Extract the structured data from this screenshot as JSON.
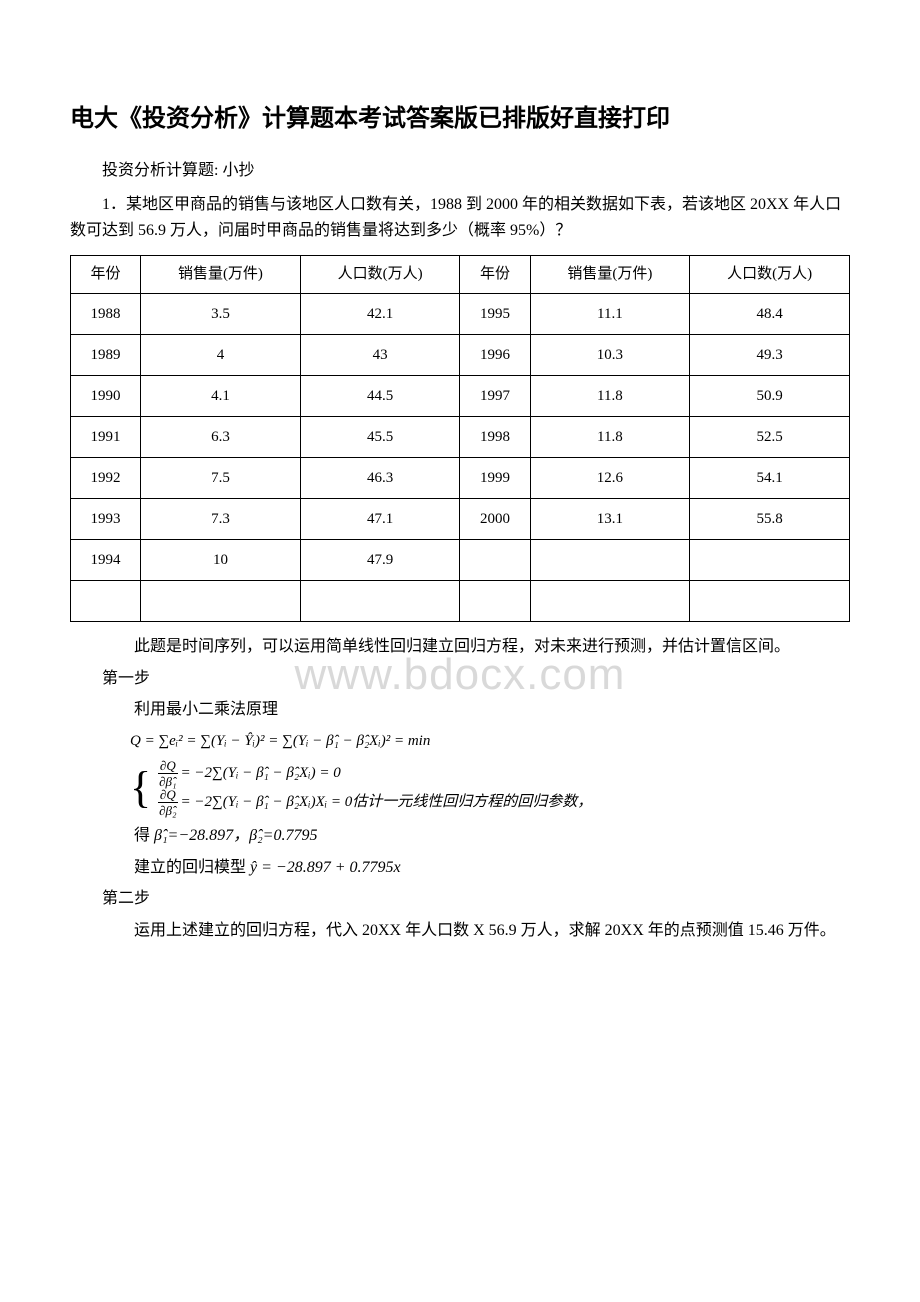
{
  "title": "电大《投资分析》计算题本考试答案版已排版好直接打印",
  "intro1": "投资分析计算题: 小抄",
  "intro2": "1．某地区甲商品的销售与该地区人口数有关，1988 到 2000 年的相关数据如下表，若该地区 20XX 年人口数可达到 56.9 万人，问届时甲商品的销售量将达到多少（概率 95%）？",
  "watermark_text": "www.bdocx.com",
  "table": {
    "headers": [
      "年份",
      "销售量(万件)",
      "人口数(万人)",
      "年份",
      "销售量(万件)",
      "人口数(万人)"
    ],
    "rows": [
      [
        "1988",
        "3.5",
        "42.1",
        "1995",
        "11.1",
        "48.4"
      ],
      [
        "1989",
        "4",
        "43",
        "1996",
        "10.3",
        "49.3"
      ],
      [
        "1990",
        "4.1",
        "44.5",
        "1997",
        "11.8",
        "50.9"
      ],
      [
        "1991",
        "6.3",
        "45.5",
        "1998",
        "11.8",
        "52.5"
      ],
      [
        "1992",
        "7.5",
        "46.3",
        "1999",
        "12.6",
        "54.1"
      ],
      [
        "1993",
        "7.3",
        "47.1",
        "2000",
        "13.1",
        "55.8"
      ],
      [
        "1994",
        "10",
        "47.9",
        "",
        "",
        ""
      ]
    ],
    "border_color": "#000000"
  },
  "explain": "此题是时间序列，可以运用简单线性回归建立回归方程，对未来进行预测，并估计置信区间。",
  "step1_label": "第一步",
  "step1_text": "利用最小二乘法原理",
  "formula_q": "Q = ∑eᵢ² = ∑(Yᵢ − Ŷᵢ)² = ∑(Yᵢ − β̂₁ − β̂₂Xᵢ)² = min",
  "brace_line1_before": "= −2∑(Yᵢ − β̂₁ − β̂₂Xᵢ) = 0",
  "brace_line2_before": "= −2∑(Yᵢ − β̂₁ − β̂₂Xᵢ)Xᵢ = 0",
  "brace_after_text": "估计一元线性回归方程的回归参数，",
  "result_beta_pre": "得",
  "result_beta": "β̂₁=−28.897，β̂₂=0.7795",
  "model_pre": "建立的回归模型",
  "model_formula": "ŷ = −28.897 + 0.7795x",
  "step2_label": "第二步",
  "step2_text": "运用上述建立的回归方程，代入 20XX 年人口数 X 56.9 万人，求解 20XX 年的点预测值 15.46 万件。",
  "colors": {
    "text": "#000000",
    "background": "#ffffff",
    "watermark": "#d9d9d9",
    "table_border": "#000000"
  },
  "fonts": {
    "body": "SimSun",
    "title": "SimHei",
    "math": "Times New Roman"
  }
}
